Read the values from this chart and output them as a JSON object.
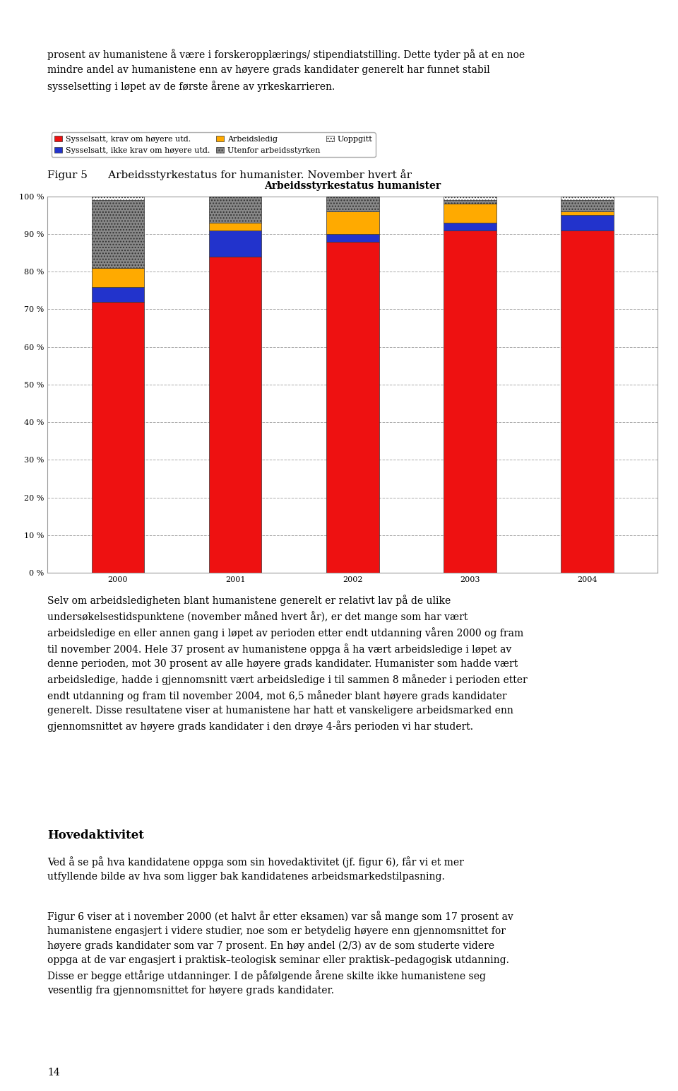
{
  "title": "Arbeidsstyrkestatus humanister",
  "fig_caption": "Figur 5      Arbeidsstyrkestatus for humanister. November hvert år",
  "categories": [
    "2000",
    "2001",
    "2002",
    "2003",
    "2004"
  ],
  "series": {
    "Sysselsatt, krav om høyere utd.": [
      72,
      84,
      88,
      91,
      91
    ],
    "Sysselsatt, ikke krav om høyere utd.": [
      4,
      7,
      2,
      2,
      4
    ],
    "Arbeidsledig": [
      5,
      2,
      6,
      5,
      1
    ],
    "Utenfor arbeidsstyrken": [
      18,
      7,
      4,
      1,
      3
    ],
    "Uoppgitt": [
      1,
      0,
      0,
      1,
      1
    ]
  },
  "colors": {
    "Sysselsatt, krav om høyere utd.": "#ee1111",
    "Sysselsatt, ikke krav om høyere utd.": "#2233cc",
    "Arbeidsledig": "#ffaa00",
    "Utenfor arbeidsstyrken": "#888888",
    "Uoppgitt": "#ffffff"
  },
  "hatches": {
    "Sysselsatt, krav om høyere utd.": "",
    "Sysselsatt, ikke krav om høyere utd.": "",
    "Arbeidsledig": "",
    "Utenfor arbeidsstyrken": "....",
    "Uoppgitt": "...."
  },
  "ylim": [
    0,
    100
  ],
  "ytick_values": [
    0,
    10,
    20,
    30,
    40,
    50,
    60,
    70,
    80,
    90,
    100
  ],
  "ytick_labels": [
    "0 %",
    "10 %",
    "20 %",
    "30 %",
    "40 %",
    "50 %",
    "60 %",
    "70 %",
    "80 %",
    "90 %",
    "100 %"
  ],
  "background_color": "#ffffff",
  "page_width": 9.6,
  "page_height": 15.43,
  "text_above": "prosent av humanistene å være i forskeropplærings/ stipendiatstilling. Dette tyder på at en noe\nmindre andel av humanistene enn av høyere grads kandidater generelt har funnet stabil\nsysselsetting i løpet av de første årene av yrkeskarrieren.",
  "text_below_1": "Selv om arbeidsledigheten blant humanistene generelt er relativt lav på de ulike\nundersøkelsestidspunktene (november måned hvert år), er det mange som har vært\narbeidsledige en eller annen gang i løpet av perioden etter endt utdanning våren 2000 og fram\ntil november 2004. Hele 37 prosent av humanistene oppga å ha vært arbeidsledige i løpet av\ndenne perioden, mot 30 prosent av alle høyere grads kandidater. Humanister som hadde vært\narbeidsledige, hadde i gjennomsnitt vært arbeidsledige i til sammen 8 måneder i perioden etter\nendt utdanning og fram til november 2004, mot 6,5 måneder blant høyere grads kandidater\ngenerelt. Disse resultatene viser at humanistene har hatt et vanskeligere arbeidsmarked enn\ngjennomsnittet av høyere grads kandidater i den drøye 4-års perioden vi har studert.",
  "heading_below": "Hovedaktivitet",
  "text_below_2": "Ved å se på hva kandidatene oppga som sin hovedaktivitet (jf. figur 6), får vi et mer\nutfyllende bilde av hva som ligger bak kandidatenes arbeidsmarkedstilpasning.",
  "text_below_3": "Figur 6 viser at i november 2000 (et halvt år etter eksamen) var så mange som 17 prosent av\nhumanistene engasjert i videre studier, noe som er betydelig høyere enn gjennomsnittet for\nhøyere grads kandidater som var 7 prosent. En høy andel (2/3) av de som studerte videre\noppga at de var engasjert i praktisk–teologisk seminar eller praktisk–pedagogisk utdanning.\nDisse er begge ettårige utdanninger. I de påfølgende årene skilte ikke humanistene seg\nvesentlig fra gjennomsnittet for høyere grads kandidater.",
  "page_number": "14",
  "legend_fontsize": 8,
  "title_fontsize": 10,
  "tick_fontsize": 8,
  "body_fontsize": 10,
  "caption_fontsize": 11
}
